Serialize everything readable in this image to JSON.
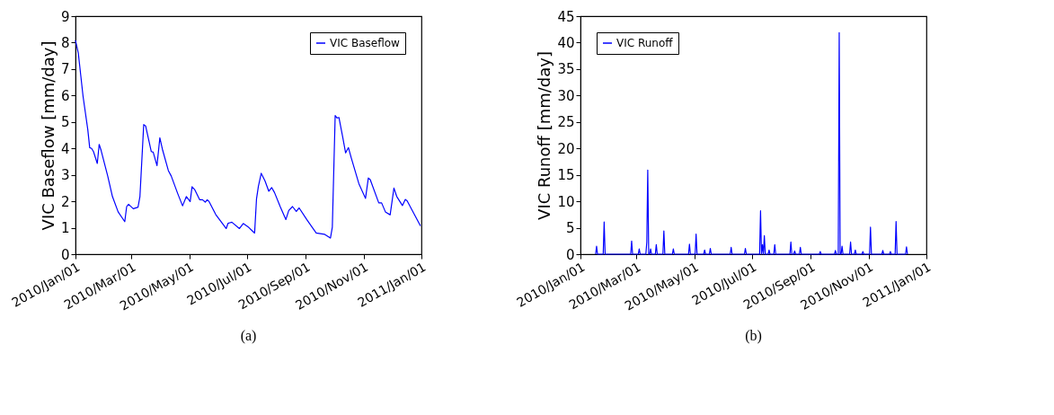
{
  "chart_data": [
    {
      "type": "line",
      "ylabel": "VIC Baseflow [mm/day]",
      "legend": "top right",
      "grid": false,
      "annotations": [
        "(a)"
      ],
      "xlim": [
        "2010-01-01",
        "2011-01-01"
      ],
      "ylim": [
        0,
        9
      ],
      "yticks": [
        0,
        1,
        2,
        3,
        4,
        5,
        6,
        7,
        8,
        9
      ],
      "xticks": [
        {
          "value": "2010-01-01",
          "label": "2010/Jan/01"
        },
        {
          "value": "2010-03-01",
          "label": "2010/Mar/01"
        },
        {
          "value": "2010-05-01",
          "label": "2010/May/01"
        },
        {
          "value": "2010-07-01",
          "label": "2010/Jul/01"
        },
        {
          "value": "2010-09-01",
          "label": "2010/Sep/01"
        },
        {
          "value": "2010-11-01",
          "label": "2010/Nov/01"
        },
        {
          "value": "2011-01-01",
          "label": "2011/Jan/01"
        }
      ],
      "series": [
        {
          "name": "VIC Baseflow",
          "color": "#0000ff",
          "x": [
            "2010-01-01",
            "2010-01-04",
            "2010-01-09",
            "2010-01-14",
            "2010-01-16",
            "2010-01-18",
            "2010-01-20",
            "2010-01-24",
            "2010-01-26",
            "2010-01-28",
            "2010-02-04",
            "2010-02-09",
            "2010-02-15",
            "2010-02-22",
            "2010-02-24",
            "2010-02-26",
            "2010-03-03",
            "2010-03-08",
            "2010-03-10",
            "2010-03-14",
            "2010-03-16",
            "2010-03-22",
            "2010-03-24",
            "2010-03-28",
            "2010-03-31",
            "2010-04-03",
            "2010-04-09",
            "2010-04-12",
            "2010-04-19",
            "2010-04-24",
            "2010-04-28",
            "2010-05-02",
            "2010-05-04",
            "2010-05-07",
            "2010-05-12",
            "2010-05-15",
            "2010-05-18",
            "2010-05-20",
            "2010-05-22",
            "2010-05-29",
            "2010-06-09",
            "2010-06-11",
            "2010-06-15",
            "2010-06-23",
            "2010-06-27",
            "2010-07-02",
            "2010-07-09",
            "2010-07-11",
            "2010-07-13",
            "2010-07-16",
            "2010-07-20",
            "2010-07-24",
            "2010-07-27",
            "2010-07-30",
            "2010-08-05",
            "2010-08-11",
            "2010-08-14",
            "2010-08-18",
            "2010-08-22",
            "2010-08-25",
            "2010-09-02",
            "2010-09-12",
            "2010-09-21",
            "2010-09-27",
            "2010-09-29",
            "2010-10-02",
            "2010-10-04",
            "2010-10-06",
            "2010-10-10",
            "2010-10-13",
            "2010-10-16",
            "2010-10-19",
            "2010-10-27",
            "2010-11-03",
            "2010-11-06",
            "2010-11-08",
            "2010-11-17",
            "2010-11-20",
            "2010-11-24",
            "2010-11-29",
            "2010-12-03",
            "2010-12-06",
            "2010-12-12",
            "2010-12-15",
            "2010-12-17",
            "2010-12-31"
          ],
          "values": [
            8.09,
            7.6,
            5.97,
            4.71,
            4.03,
            4.0,
            3.88,
            3.43,
            4.15,
            3.93,
            2.96,
            2.18,
            1.6,
            1.23,
            1.8,
            1.89,
            1.72,
            1.78,
            2.18,
            4.9,
            4.85,
            3.88,
            3.86,
            3.35,
            4.4,
            3.93,
            3.16,
            2.96,
            2.28,
            1.83,
            2.18,
            1.99,
            2.55,
            2.43,
            2.06,
            2.06,
            1.97,
            2.06,
            1.99,
            1.5,
            0.97,
            1.17,
            1.21,
            0.97,
            1.16,
            1.04,
            0.8,
            2.09,
            2.57,
            3.06,
            2.77,
            2.38,
            2.52,
            2.33,
            1.8,
            1.31,
            1.65,
            1.8,
            1.62,
            1.75,
            1.31,
            0.8,
            0.75,
            0.61,
            1.02,
            5.24,
            5.15,
            5.17,
            4.42,
            3.83,
            4.03,
            3.64,
            2.67,
            2.11,
            2.88,
            2.82,
            1.94,
            1.94,
            1.6,
            1.49,
            2.5,
            2.18,
            1.84,
            2.07,
            2.01,
            1.07
          ]
        }
      ]
    },
    {
      "type": "line",
      "ylabel": "VIC Runoff [mm/day]",
      "legend": "top left",
      "grid": false,
      "annotations": [
        "(b)"
      ],
      "xlim": [
        "2010-01-01",
        "2011-01-01"
      ],
      "ylim": [
        0,
        45
      ],
      "yticks": [
        0,
        5,
        10,
        15,
        20,
        25,
        30,
        35,
        40,
        45
      ],
      "xticks": [
        {
          "value": "2010-01-01",
          "label": "2010/Jan/01"
        },
        {
          "value": "2010-03-01",
          "label": "2010/Mar/01"
        },
        {
          "value": "2010-05-01",
          "label": "2010/May/01"
        },
        {
          "value": "2010-07-01",
          "label": "2010/Jul/01"
        },
        {
          "value": "2010-09-01",
          "label": "2010/Sep/01"
        },
        {
          "value": "2010-11-01",
          "label": "2010/Nov/01"
        },
        {
          "value": "2011-01-01",
          "label": "2011/Jan/01"
        }
      ],
      "series": [
        {
          "name": "VIC Runoff",
          "color": "#0000ff",
          "x": [
            "2010-01-17",
            "2010-01-18",
            "2010-01-19",
            "2010-01-25",
            "2010-01-26",
            "2010-01-27",
            "2010-02-23",
            "2010-02-24",
            "2010-02-25",
            "2010-03-03",
            "2010-03-04",
            "2010-03-05",
            "2010-03-11",
            "2010-03-12",
            "2010-03-13",
            "2010-03-14",
            "2010-03-15",
            "2010-03-16",
            "2010-03-17",
            "2010-03-21",
            "2010-03-22",
            "2010-03-23",
            "2010-03-29",
            "2010-03-30",
            "2010-03-31",
            "2010-04-08",
            "2010-04-09",
            "2010-04-10",
            "2010-04-25",
            "2010-04-26",
            "2010-04-27",
            "2010-05-02",
            "2010-05-03",
            "2010-05-04",
            "2010-05-11",
            "2010-05-12",
            "2010-05-13",
            "2010-05-17",
            "2010-05-18",
            "2010-05-19",
            "2010-06-08",
            "2010-06-09",
            "2010-06-10",
            "2010-06-23",
            "2010-06-24",
            "2010-06-25",
            "2010-07-09",
            "2010-07-10",
            "2010-07-11",
            "2010-07-12",
            "2010-07-13",
            "2010-07-14",
            "2010-07-15",
            "2010-07-18",
            "2010-07-19",
            "2010-07-20",
            "2010-07-24",
            "2010-07-25",
            "2010-07-26",
            "2010-08-10",
            "2010-08-11",
            "2010-08-12",
            "2010-08-14",
            "2010-08-15",
            "2010-08-16",
            "2010-08-20",
            "2010-08-21",
            "2010-08-22",
            "2010-09-10",
            "2010-09-11",
            "2010-09-12",
            "2010-09-26",
            "2010-09-27",
            "2010-09-28",
            "2010-09-30",
            "2010-10-01",
            "2010-10-02",
            "2010-10-03",
            "2010-10-04",
            "2010-10-05",
            "2010-10-12",
            "2010-10-13",
            "2010-10-14",
            "2010-10-17",
            "2010-10-18",
            "2010-10-19",
            "2010-10-25",
            "2010-10-26",
            "2010-10-27",
            "2010-11-02",
            "2010-11-03",
            "2010-11-04",
            "2010-11-15",
            "2010-11-16",
            "2010-11-17",
            "2010-11-23",
            "2010-11-24",
            "2010-11-25",
            "2010-11-29",
            "2010-11-30",
            "2010-12-01",
            "2010-12-10",
            "2010-12-11",
            "2010-12-12"
          ],
          "values": [
            0,
            1.5,
            0,
            0,
            6.1,
            0,
            0,
            2.5,
            0,
            0,
            1.0,
            0,
            0,
            2.3,
            15.9,
            0,
            0,
            1.0,
            0,
            0,
            1.8,
            0,
            0,
            4.4,
            0,
            0,
            1.0,
            0,
            0,
            1.9,
            0,
            0,
            3.8,
            0,
            0,
            0.8,
            0,
            0,
            1.1,
            0,
            0,
            1.3,
            0,
            0,
            1.1,
            0,
            0,
            8.2,
            0,
            1.8,
            0,
            3.5,
            0,
            0,
            0.8,
            0,
            0,
            1.8,
            0,
            0,
            2.3,
            0,
            0,
            0.6,
            0,
            0,
            1.3,
            0,
            0,
            0.5,
            0,
            0,
            0.7,
            0,
            0,
            41.9,
            0,
            0,
            1.5,
            0,
            0,
            2.3,
            0,
            0,
            0.8,
            0,
            0,
            0.5,
            0,
            0,
            5.1,
            0,
            0,
            0.7,
            0,
            0,
            0.5,
            0,
            0,
            6.2,
            0,
            0,
            1.4,
            0
          ]
        }
      ]
    }
  ]
}
